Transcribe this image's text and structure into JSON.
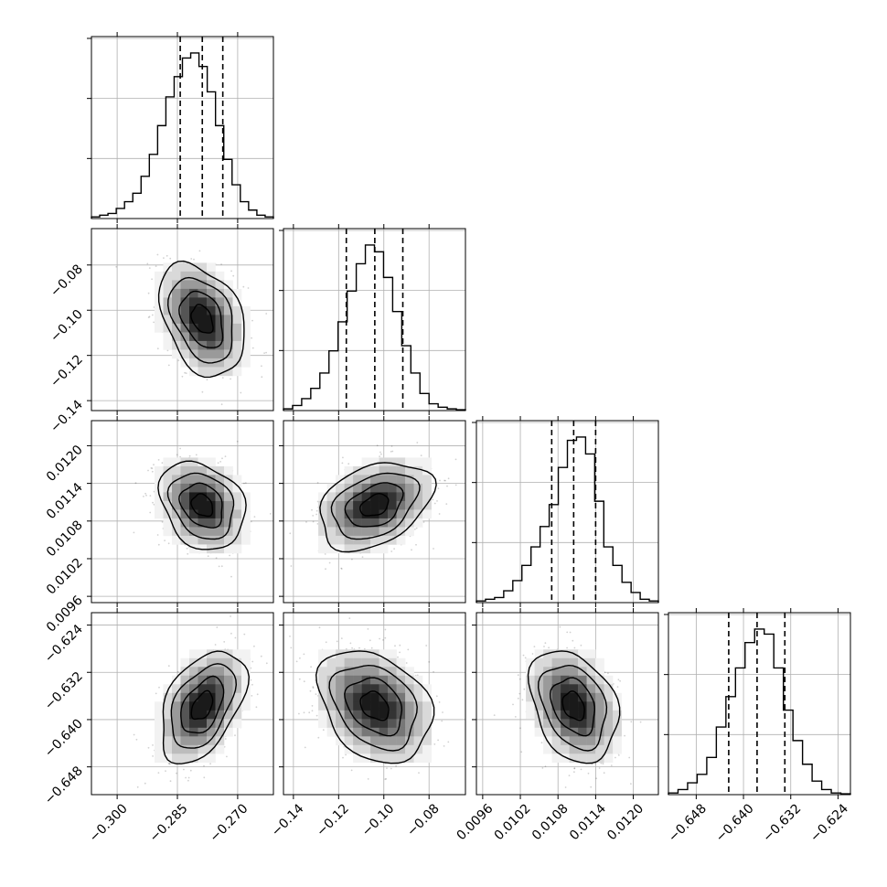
{
  "chart_data": {
    "type": "corner",
    "grid": true,
    "parameters": [
      {
        "ticks": [
          -0.3,
          -0.285,
          -0.27
        ],
        "tick_labels": [
          "−0.300",
          "−0.285",
          "−0.270"
        ],
        "lim": [
          -0.3064,
          -0.2611
        ],
        "quantiles": [
          -0.2843,
          -0.2788,
          -0.2737
        ]
      },
      {
        "ticks": [
          -0.14,
          -0.12,
          -0.1,
          -0.08
        ],
        "tick_labels": [
          "−0.14",
          "−0.12",
          "−0.10",
          "−0.08"
        ],
        "lim": [
          -0.1444,
          -0.0639
        ],
        "quantiles": [
          -0.1166,
          -0.104,
          -0.0916
        ]
      },
      {
        "ticks": [
          0.0096,
          0.0102,
          0.0108,
          0.0114,
          0.012
        ],
        "tick_labels": [
          "0.0096",
          "0.0102",
          "0.0108",
          "0.0114",
          "0.0120"
        ],
        "lim": [
          0.0095,
          0.0124
        ],
        "quantiles": [
          0.0107,
          0.01105,
          0.0114
        ]
      },
      {
        "ticks": [
          -0.648,
          -0.64,
          -0.632,
          -0.624
        ],
        "tick_labels": [
          "−0.648",
          "−0.640",
          "−0.632",
          "−0.624"
        ],
        "lim": [
          -0.6527,
          -0.6219
        ],
        "quantiles": [
          -0.6425,
          -0.6377,
          -0.633
        ]
      }
    ],
    "histograms": [
      [
        1,
        2,
        3,
        6,
        10,
        15,
        25,
        38,
        55,
        72,
        84,
        95,
        98,
        90,
        75,
        55,
        35,
        20,
        10,
        5,
        2,
        1
      ],
      [
        1,
        3,
        7,
        13,
        22,
        35,
        52,
        70,
        86,
        97,
        93,
        78,
        58,
        38,
        22,
        10,
        4,
        2,
        1,
        0.5
      ],
      [
        1,
        2,
        3,
        7,
        13,
        22,
        33,
        45,
        58,
        80,
        96,
        98,
        88,
        60,
        33,
        22,
        12,
        6,
        2,
        1
      ],
      [
        1,
        3,
        7,
        12,
        22,
        40,
        58,
        75,
        90,
        98,
        95,
        75,
        50,
        32,
        18,
        8,
        3,
        1,
        0.5
      ]
    ],
    "correlations": {
      "1-0": -0.35,
      "2-0": -0.25,
      "2-1": 0.35,
      "3-0": 0.45,
      "3-1": -0.3,
      "3-2": -0.3
    }
  }
}
